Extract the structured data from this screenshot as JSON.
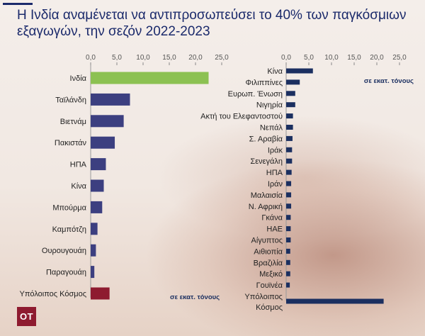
{
  "title": "Η Ινδία αναμένεται να αντιπροσωπεύσει το 40% των παγκόσμιων εξαγωγών, την σεζόν 2022-2023",
  "logo_text": "OT",
  "colors": {
    "highlight": "#8cc152",
    "bar": "#3c3f80",
    "other": "#8e1b30",
    "right_bar": "#1b2f60",
    "title": "#1b2a6b",
    "axis_text": "#555555"
  },
  "chart_data": [
    {
      "type": "bar",
      "orientation": "horizontal",
      "title": "",
      "unit_label": "σε εκατ. τόνους",
      "xlim": [
        0,
        25
      ],
      "ticks": [
        "0,0",
        "5,0",
        "10,0",
        "15,0",
        "20,0",
        "25,0"
      ],
      "categories": [
        "Ινδία",
        "Ταϊλάνδη",
        "Βιετνάμ",
        "Πακιστάν",
        "ΗΠΑ",
        "Κίνα",
        "Μπούρμα",
        "Καμπότζη",
        "Ουρουγουάη",
        "Παραγουάη",
        "Υπόλοιπος Κόσμος"
      ],
      "values": [
        22.5,
        7.5,
        6.3,
        4.6,
        2.9,
        2.5,
        2.2,
        1.3,
        1.0,
        0.7,
        3.6
      ]
    },
    {
      "type": "bar",
      "orientation": "horizontal",
      "title": "",
      "unit_label": "σε εκατ. τόνους",
      "xlim": [
        0,
        25
      ],
      "ticks": [
        "0,0",
        "5,0",
        "10,0",
        "15,0",
        "20,0",
        "25,0"
      ],
      "categories": [
        "Κίνα",
        "Φιλιππίνες",
        "Ευρωπ. Ένωση",
        "Νιγηρία",
        "Ακτή του Ελεφαντοστού",
        "Νεπάλ",
        "Σ. Αραβία",
        "Ιράκ",
        "Σενεγάλη",
        "ΗΠΑ",
        "Ιράν",
        "Μαλαισία",
        "Ν. Αφρική",
        "Γκάνα",
        "ΗΑΕ",
        "Αίγυπτος",
        "Αιθιοπία",
        "Βραζιλία",
        "Μεξικό",
        "Γουϊνέα",
        "Υπόλοιπος Κόσμος"
      ],
      "values": [
        5.9,
        3.0,
        2.0,
        2.0,
        1.5,
        1.5,
        1.4,
        1.3,
        1.3,
        1.2,
        1.1,
        1.1,
        1.1,
        1.0,
        1.0,
        1.0,
        0.9,
        0.9,
        0.9,
        0.8,
        21.5
      ]
    }
  ]
}
